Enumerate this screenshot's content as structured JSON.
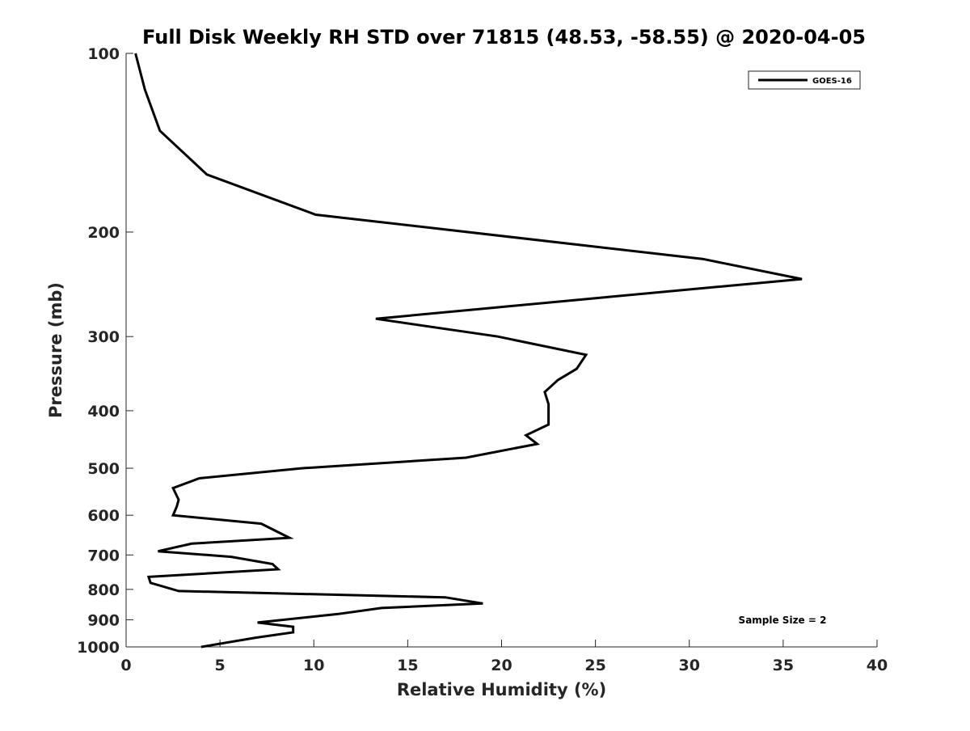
{
  "chart_data": {
    "type": "line",
    "title": "Full Disk Weekly RH STD over 71815 (48.53, -58.55) @ 2020-04-05",
    "xlabel": "Relative Humidity (%)",
    "ylabel": "Pressure (mb)",
    "xlim": [
      0,
      40
    ],
    "ylim": [
      100,
      1000
    ],
    "yscale": "log",
    "yreversed": true,
    "grid": false,
    "legend_position": "top-right",
    "xticks": [
      0,
      5,
      10,
      15,
      20,
      25,
      30,
      35,
      40
    ],
    "xtick_labels": [
      "0",
      "5",
      "10",
      "15",
      "20",
      "25",
      "30",
      "35",
      "40"
    ],
    "yticks": [
      100,
      200,
      300,
      400,
      500,
      600,
      700,
      800,
      900,
      1000
    ],
    "ytick_labels": [
      "100",
      "200",
      "300",
      "400",
      "500",
      "600",
      "700",
      "800",
      "900",
      "1000"
    ],
    "series": [
      {
        "name": "GOES-16",
        "color": "#000000",
        "points": [
          [
            0.5,
            100
          ],
          [
            1.0,
            115
          ],
          [
            1.8,
            135
          ],
          [
            4.3,
            160
          ],
          [
            10.1,
            187
          ],
          [
            30.7,
            222
          ],
          [
            36.0,
            240
          ],
          [
            25.3,
            258
          ],
          [
            13.3,
            280
          ],
          [
            19.8,
            300
          ],
          [
            24.5,
            322
          ],
          [
            24.0,
            340
          ],
          [
            23.0,
            355
          ],
          [
            22.3,
            372
          ],
          [
            22.5,
            390
          ],
          [
            22.5,
            422
          ],
          [
            21.3,
            440
          ],
          [
            21.9,
            455
          ],
          [
            18.1,
            480
          ],
          [
            9.4,
            500
          ],
          [
            3.9,
            520
          ],
          [
            2.5,
            540
          ],
          [
            2.8,
            565
          ],
          [
            2.7,
            580
          ],
          [
            2.5,
            600
          ],
          [
            7.2,
            620
          ],
          [
            8.7,
            655
          ],
          [
            3.5,
            670
          ],
          [
            1.7,
            690
          ],
          [
            5.6,
            705
          ],
          [
            7.8,
            725
          ],
          [
            8.1,
            740
          ],
          [
            1.2,
            762
          ],
          [
            1.3,
            780
          ],
          [
            2.8,
            805
          ],
          [
            17.0,
            825
          ],
          [
            19.0,
            845
          ],
          [
            13.6,
            860
          ],
          [
            11.3,
            880
          ],
          [
            7.0,
            910
          ],
          [
            8.9,
            925
          ],
          [
            8.9,
            945
          ],
          [
            6.9,
            965
          ],
          [
            4.0,
            1000
          ]
        ]
      }
    ],
    "annotations": [
      {
        "text": "Sample Size = 2",
        "position": "bottom-right"
      }
    ]
  }
}
